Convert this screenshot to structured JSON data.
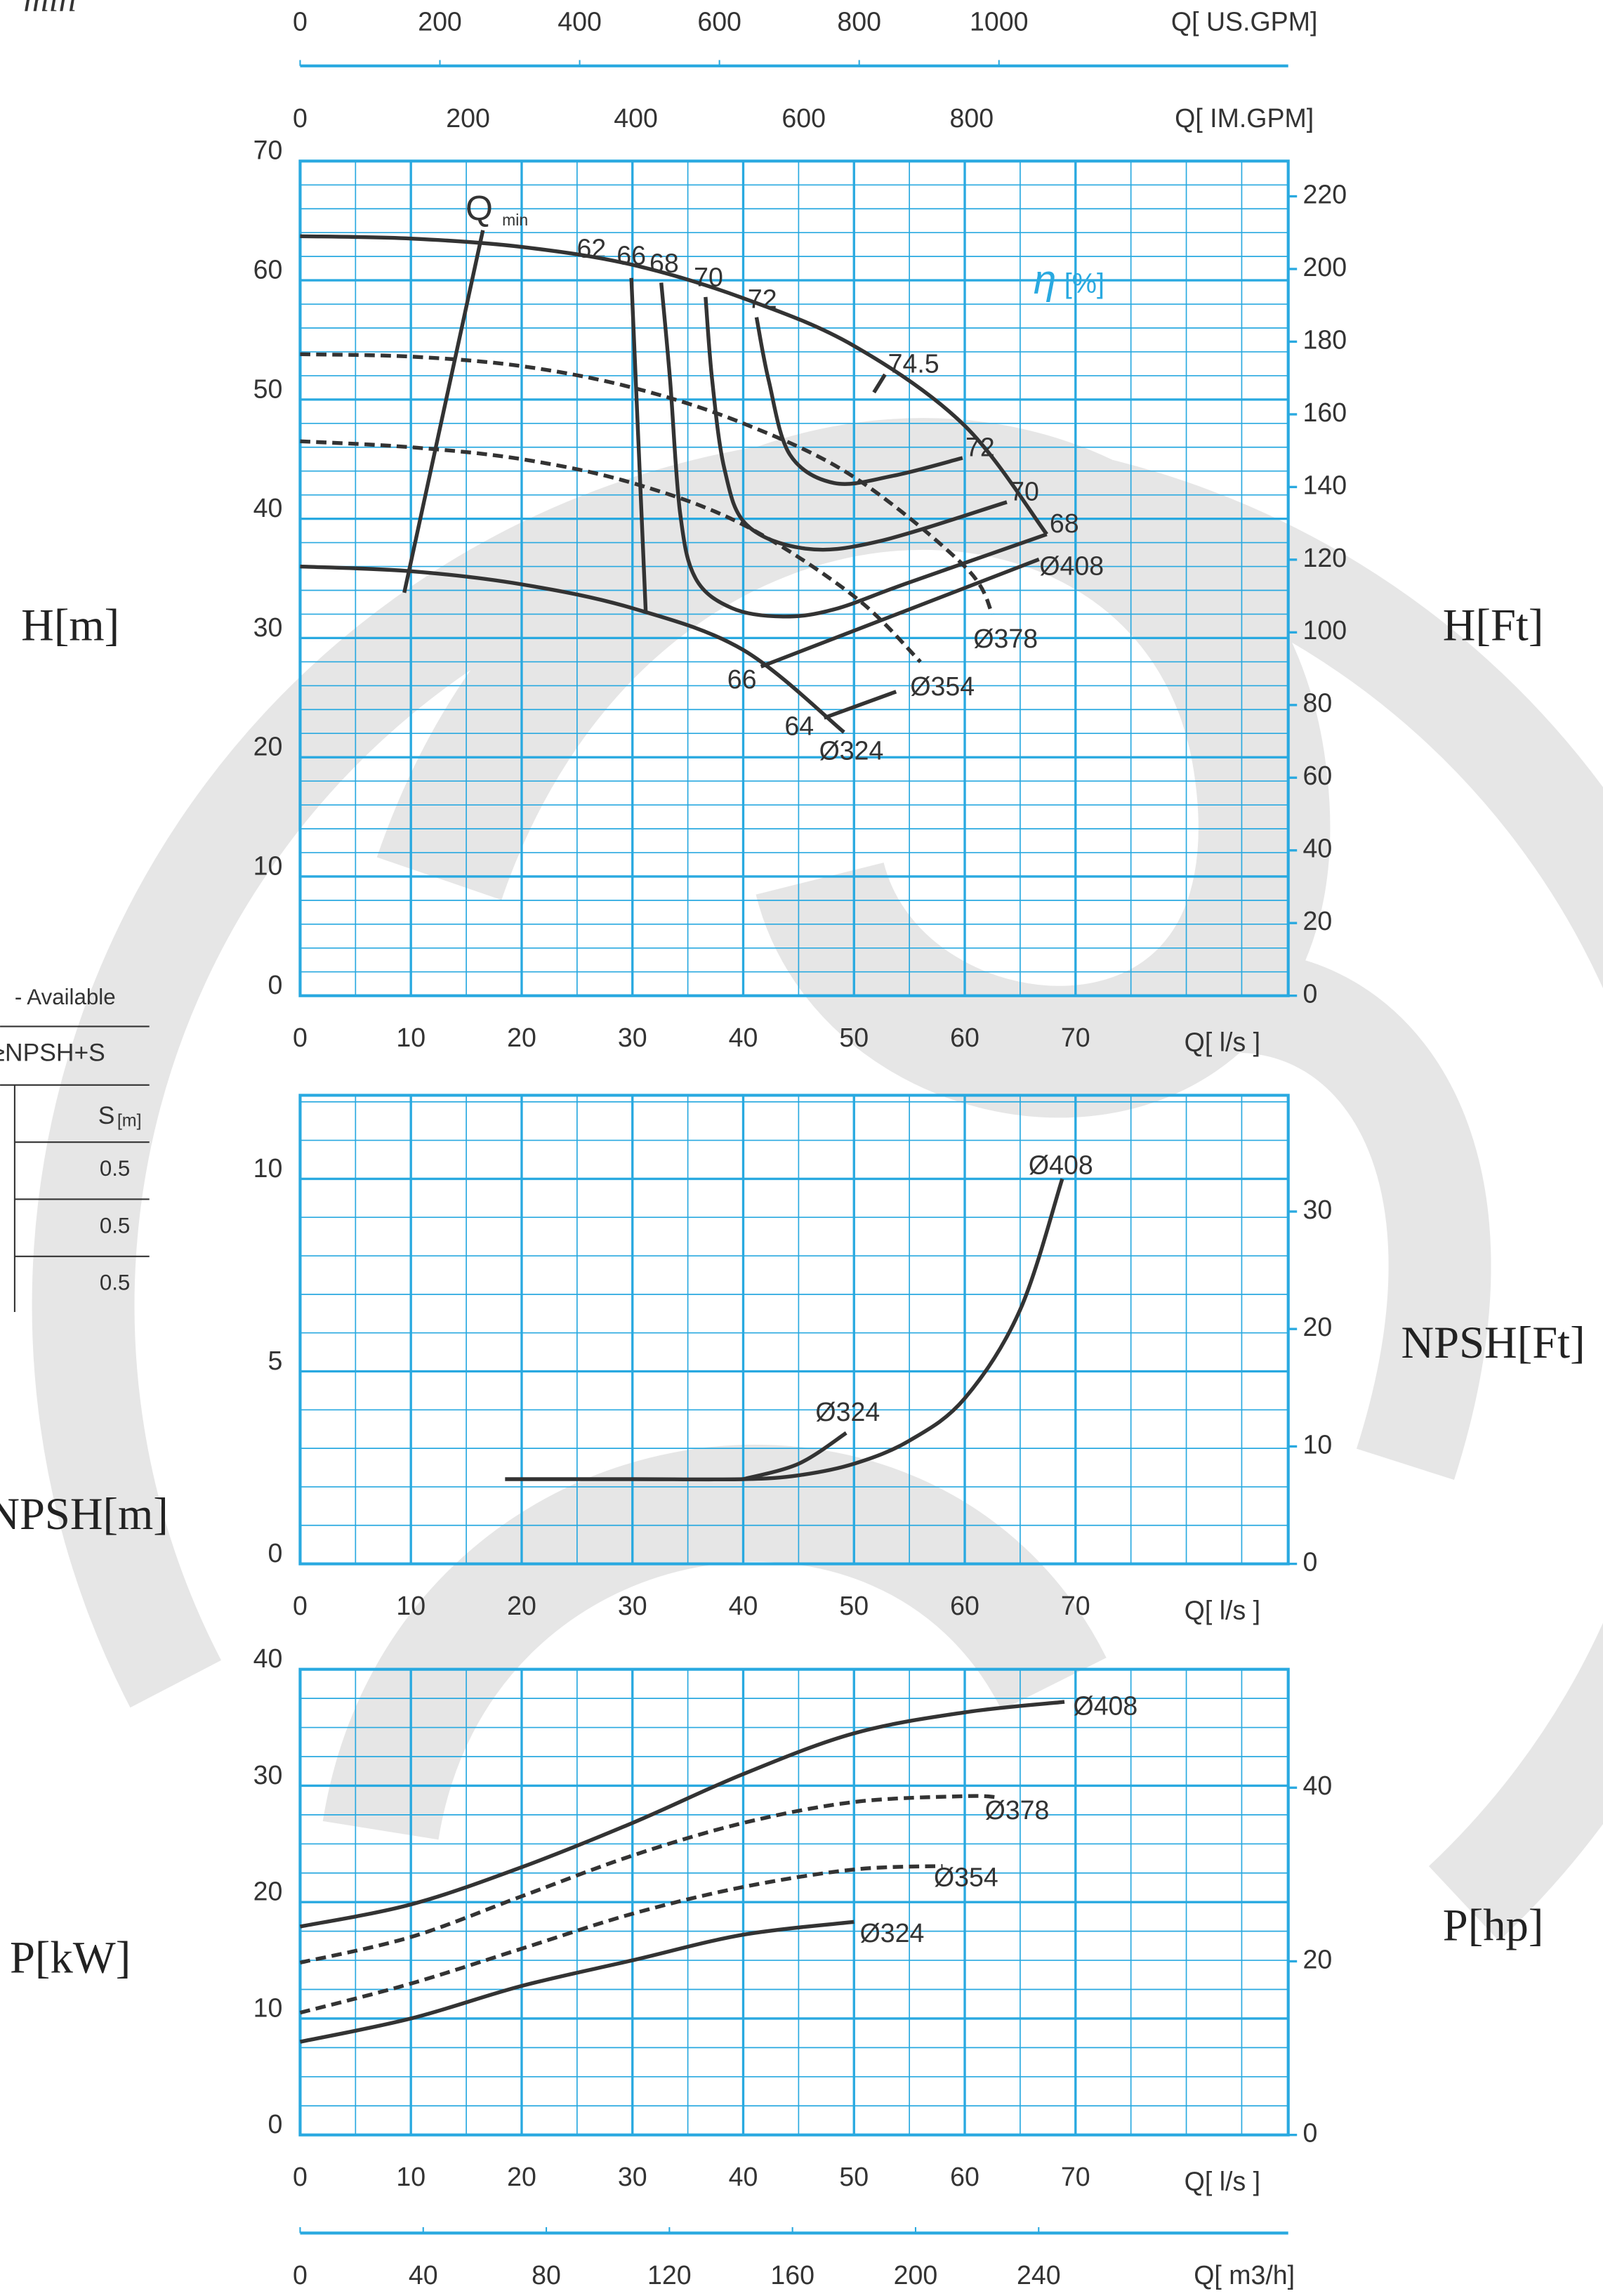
{
  "page": {
    "corner_text": "min",
    "table": {
      "title": "- Available",
      "formula": "≥NPSH+S",
      "header": "S",
      "header_unit": "[m]",
      "rows": [
        0.5,
        0.5,
        0.5
      ]
    }
  },
  "chart_data": [
    {
      "type": "line",
      "ylabel": "H[m]",
      "y2label": "H[Ft]",
      "xlabel": "Q[ l/s ]",
      "xlim": [
        0,
        89.2
      ],
      "xticks": [
        0,
        10,
        20,
        30,
        40,
        50,
        60,
        70
      ],
      "ylim": [
        0,
        70
      ],
      "yticks": [
        0,
        10,
        20,
        30,
        40,
        50,
        60,
        70
      ],
      "y2lim": [
        0,
        229.7
      ],
      "y2ticks": [
        0,
        20,
        40,
        60,
        80,
        100,
        120,
        140,
        160,
        180,
        200,
        220
      ],
      "grid": true,
      "grid_color": "#29a9e0",
      "minor_grid": {
        "x": 5,
        "y": 2
      },
      "top_axes": [
        {
          "label": "Q[ US.GPM]",
          "lim": [
            0,
            1413.9
          ],
          "ticks": [
            0,
            200,
            400,
            600,
            800,
            1000
          ]
        },
        {
          "label": "Q[ IM.GPM]",
          "lim": [
            0,
            1177.2
          ],
          "ticks": [
            0,
            200,
            400,
            600,
            800
          ]
        }
      ],
      "series": [
        {
          "name": "Ø408",
          "color": "#333333",
          "style": "solid",
          "x": [
            0,
            10,
            20,
            30,
            40,
            50,
            60,
            67.4
          ],
          "values": [
            63.7,
            63.5,
            62.8,
            61.3,
            58.5,
            54.5,
            47.8,
            38.7
          ]
        },
        {
          "name": "Ø378",
          "color": "#333333",
          "style": "dashed",
          "x": [
            0,
            10,
            20,
            30,
            40,
            50,
            60,
            62.5
          ],
          "values": [
            53.8,
            53.6,
            52.8,
            51,
            48,
            43.5,
            36,
            32
          ]
        },
        {
          "name": "Ø354",
          "color": "#333333",
          "style": "dashed",
          "x": [
            0,
            10,
            20,
            30,
            40,
            50,
            56
          ],
          "values": [
            46.5,
            46,
            45,
            43,
            39.5,
            33.5,
            28
          ]
        },
        {
          "name": "Ø324",
          "color": "#333333",
          "style": "solid",
          "x": [
            0,
            10,
            20,
            30,
            40,
            49.1
          ],
          "values": [
            36,
            35.6,
            34.5,
            32.5,
            29,
            22.1
          ]
        }
      ],
      "efficiency": {
        "symbol": "η",
        "unit": "[%]",
        "color": "#29a9e0",
        "label_without_line": "62",
        "lines": [
          {
            "name": "66",
            "x": [
              29.9,
              31.2
            ],
            "values": [
              60.2,
              32.2
            ]
          },
          {
            "name": "68",
            "x": [
              32.6,
              33.4,
              34.3,
              35.7,
              39.0,
              43.6,
              48.2,
              54.8,
              67.4
            ],
            "values": [
              59.8,
              51.6,
              40.5,
              35.0,
              32.5,
              31.8,
              32.4,
              34.6,
              38.7
            ]
          },
          {
            "name": "70",
            "x": [
              36.6,
              37.2,
              38.3,
              40.3,
              45.6,
              52.2,
              63.8
            ],
            "values": [
              58.6,
              51.6,
              44.2,
              39.5,
              37.5,
              38.1,
              41.4
            ]
          },
          {
            "name": "72",
            "x": [
              41.2,
              42.3,
              44.2,
              48.2,
              53.5,
              59.8
            ],
            "values": [
              56.9,
              51.6,
              45.4,
              43.0,
              43.6,
              45.1
            ]
          },
          {
            "name": "74.5",
            "x": [
              51.8,
              52.8
            ],
            "values": [
              50.6,
              52.1
            ]
          },
          {
            "name": "66",
            "x": [
              41.6,
              66.7
            ],
            "values": [
              27.6,
              36.6
            ]
          },
          {
            "name": "64",
            "x": [
              47.3,
              53.8
            ],
            "values": [
              23.3,
              25.5
            ]
          }
        ]
      },
      "qmin": {
        "label": "Q",
        "sub": "min",
        "x": [
          16.5,
          9.4
        ],
        "values": [
          64.2,
          33.8
        ]
      }
    },
    {
      "type": "line",
      "ylabel": "NPSH[m]",
      "y2label": "NPSH[Ft]",
      "xlabel": "Q[ l/s ]",
      "xlim": [
        0,
        89.2
      ],
      "xticks": [
        0,
        10,
        20,
        30,
        40,
        50,
        60,
        70
      ],
      "ylim": [
        0,
        12.17
      ],
      "yticks": [
        0,
        5,
        10
      ],
      "y2lim": [
        0,
        39.9
      ],
      "y2ticks": [
        0,
        10,
        20,
        30
      ],
      "grid": true,
      "grid_color": "#29a9e0",
      "minor_grid": {
        "x": 5,
        "y": 1
      },
      "series": [
        {
          "name": "Ø408",
          "color": "#333333",
          "style": "solid",
          "x": [
            18.5,
            30,
            40,
            45,
            50,
            55,
            60,
            65,
            68.8
          ],
          "values": [
            2.2,
            2.2,
            2.2,
            2.3,
            2.6,
            3.2,
            4.3,
            6.6,
            10.0
          ]
        },
        {
          "name": "Ø324",
          "color": "#333333",
          "style": "solid",
          "x": [
            40,
            45,
            49.3
          ],
          "values": [
            2.2,
            2.6,
            3.4
          ]
        }
      ]
    },
    {
      "type": "line",
      "ylabel": "P[kW]",
      "y2label": "P[hp]",
      "xlabel": "Q[ l/s ]",
      "xlim": [
        0,
        89.2
      ],
      "xticks": [
        0,
        10,
        20,
        30,
        40,
        50,
        60,
        70
      ],
      "ylim": [
        0,
        40
      ],
      "yticks": [
        0,
        10,
        20,
        30,
        40
      ],
      "y2lim": [
        0,
        53.64
      ],
      "y2ticks": [
        0,
        20,
        40
      ],
      "grid": true,
      "grid_color": "#29a9e0",
      "minor_grid": {
        "x": 5,
        "y": 2.5
      },
      "bottom_axis": {
        "label": "Q[ m3/h]",
        "lim": [
          0,
          321.1
        ],
        "ticks": [
          0,
          40,
          80,
          120,
          160,
          200,
          240
        ]
      },
      "series": [
        {
          "name": "Ø408",
          "color": "#333333",
          "style": "solid",
          "x": [
            0,
            10,
            20,
            30,
            40,
            50,
            60,
            69
          ],
          "values": [
            17.9,
            19.8,
            23,
            26.8,
            31,
            34.5,
            36.3,
            37.2
          ]
        },
        {
          "name": "Ø378",
          "color": "#333333",
          "style": "dashed",
          "x": [
            0,
            10,
            20,
            30,
            40,
            50,
            60,
            63
          ],
          "values": [
            14.8,
            17,
            20.5,
            24,
            26.8,
            28.6,
            29.1,
            29
          ]
        },
        {
          "name": "Ø354",
          "color": "#333333",
          "style": "dashed",
          "x": [
            0,
            10,
            20,
            30,
            40,
            50,
            58
          ],
          "values": [
            10.5,
            13,
            16,
            19,
            21.3,
            22.8,
            23.1
          ]
        },
        {
          "name": "Ø324",
          "color": "#333333",
          "style": "solid",
          "x": [
            0,
            10,
            20,
            30,
            40,
            50
          ],
          "values": [
            8,
            10,
            12.8,
            15,
            17.2,
            18.3
          ]
        }
      ]
    }
  ]
}
